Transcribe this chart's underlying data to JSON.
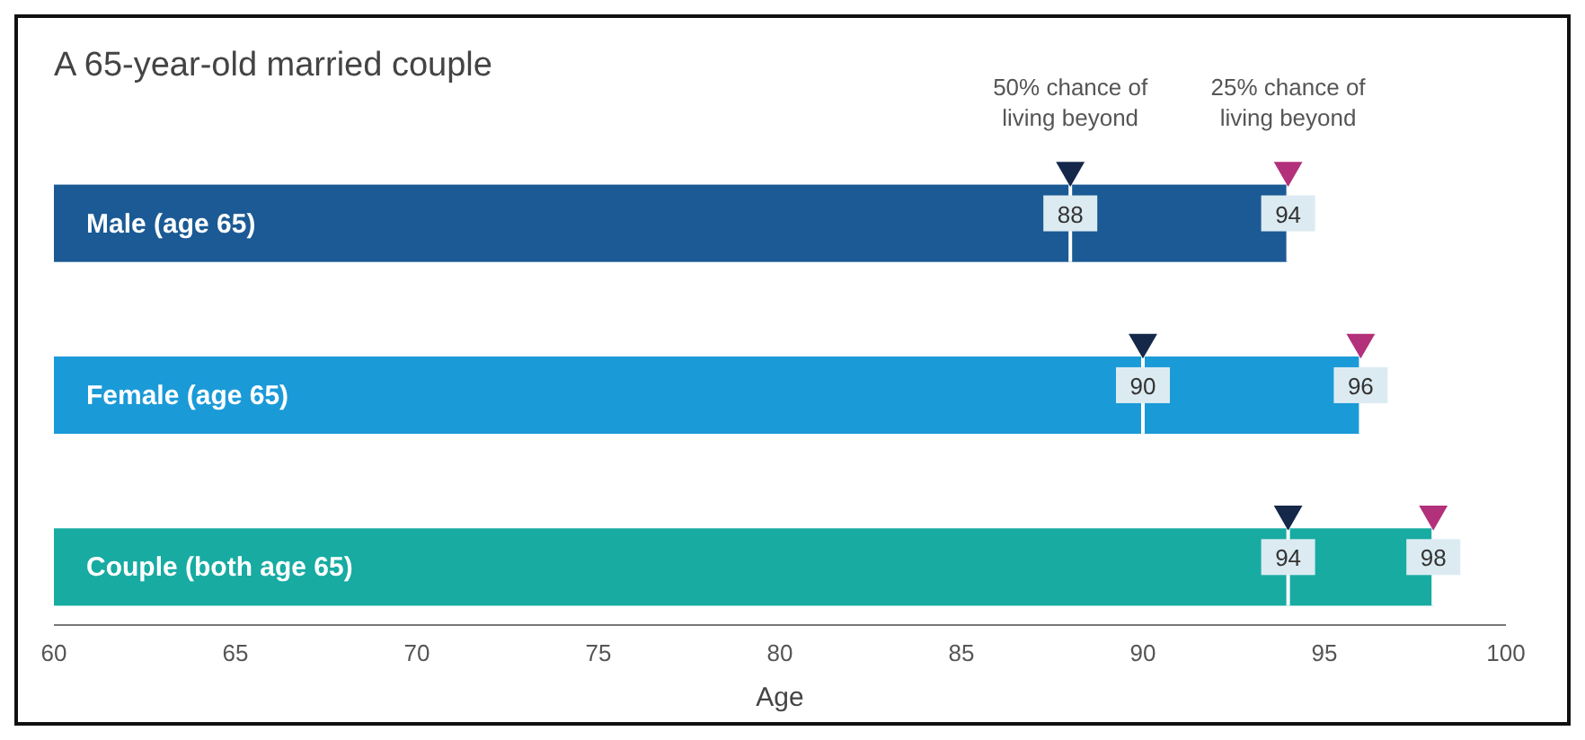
{
  "chart_data": {
    "type": "bar",
    "orientation": "horizontal",
    "title": "A 65-year-old married couple",
    "xlabel": "Age",
    "categories": [
      "Male (age 65)",
      "Female (age 65)",
      "Couple (both age 65)"
    ],
    "series": [
      {
        "colors": [
          "#1b5a94",
          "#1b9ad8",
          "#17aba2"
        ],
        "values": [
          94,
          96,
          98
        ]
      },
      {
        "type": "scatter",
        "name": "50% chance of living beyond",
        "color": "#15284a",
        "values": [
          88,
          90,
          94
        ],
        "value_labels": [
          "88",
          "90",
          "94"
        ]
      },
      {
        "type": "scatter",
        "name": "25% chance of living beyond",
        "color": "#b3307a",
        "values": [
          94,
          96,
          98
        ],
        "value_labels": [
          "94",
          "96",
          "98"
        ]
      }
    ],
    "xlim": [
      60,
      100
    ],
    "xticks": [
      60,
      65,
      70,
      75,
      80,
      85,
      90,
      95,
      100
    ],
    "marker": "triangle",
    "grid": false
  }
}
